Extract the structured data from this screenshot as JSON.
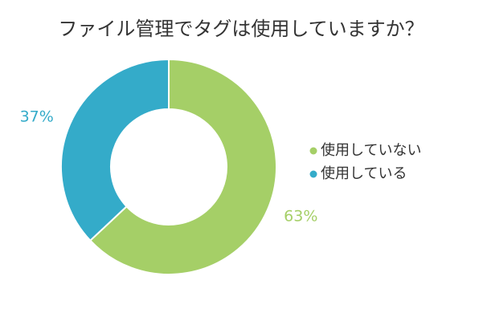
{
  "chart_data": {
    "type": "pie",
    "title": "ファイル管理でタグは使用していますか？",
    "series": [
      {
        "name": "使用していない",
        "value": 63,
        "color": "#a5cf67"
      },
      {
        "name": "使用している",
        "value": 37,
        "color": "#34abc9"
      }
    ],
    "data_labels": [
      "63%",
      "37%"
    ],
    "legend_position": "right",
    "donut": true
  }
}
